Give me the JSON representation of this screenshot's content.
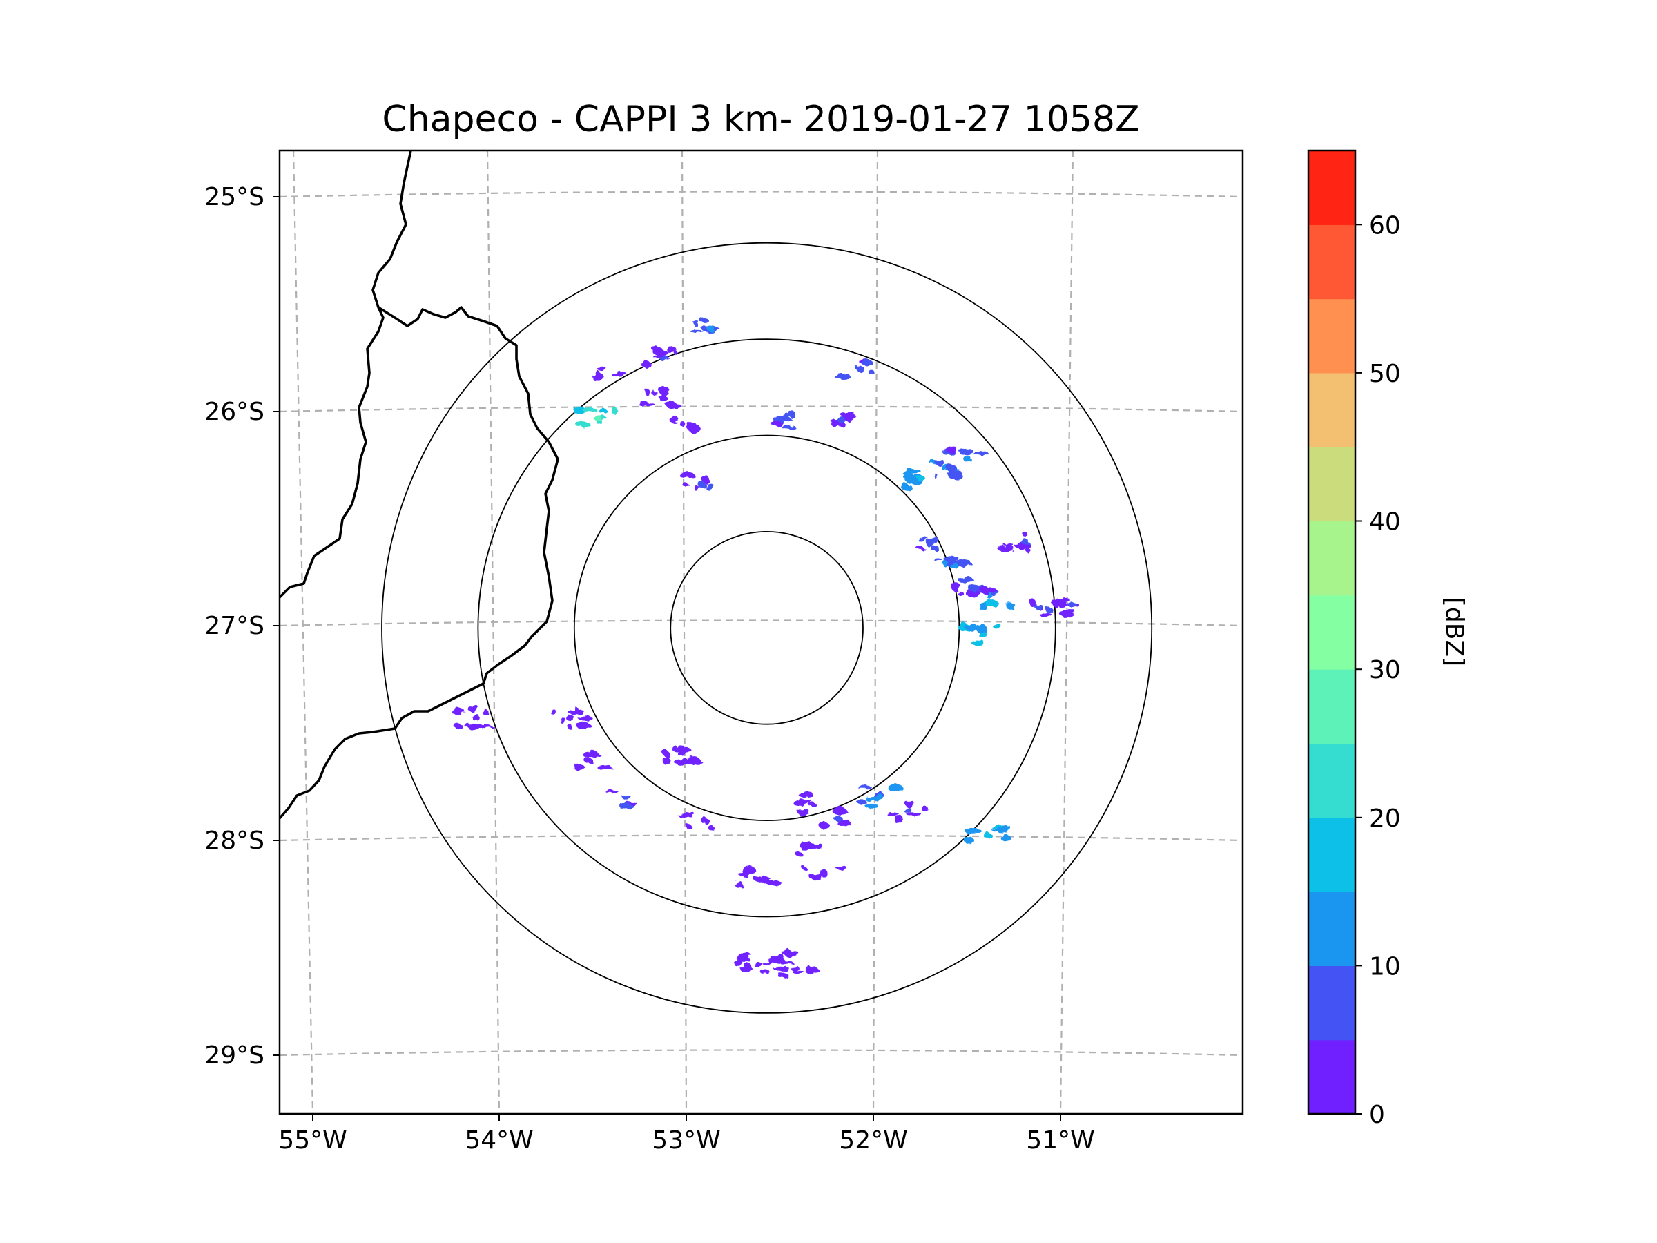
{
  "chart_data": {
    "type": "radar_map",
    "title": "Chapeco - CAPPI 3 km- 2019-01-27 1058Z",
    "radar_site": {
      "lon": -52.6,
      "lat": -27.03
    },
    "lon_range": [
      -55.2,
      -50.06
    ],
    "lat_range": [
      -29.3,
      -24.8
    ],
    "lon_ticks": [
      -55,
      -54,
      -53,
      -52,
      -51
    ],
    "lon_tick_labels": [
      "55°W",
      "54°W",
      "53°W",
      "52°W",
      "51°W"
    ],
    "lat_ticks": [
      -25,
      -26,
      -27,
      -28,
      -29
    ],
    "lat_tick_labels": [
      "25°S",
      "26°S",
      "27°S",
      "28°S",
      "29°S"
    ],
    "range_rings_km": [
      50,
      100,
      150,
      200
    ],
    "colorbar": {
      "label": "[dBZ]",
      "min": 0,
      "max": 65,
      "step": 5,
      "ticks": [
        0,
        10,
        20,
        30,
        40,
        50,
        60
      ],
      "tick_labels": [
        "0",
        "10",
        "20",
        "30",
        "40",
        "50",
        "60"
      ],
      "colors": [
        "#7020ff",
        "#4454f4",
        "#1a96f0",
        "#0dc0e8",
        "#35dcd0",
        "#5cf2b8",
        "#84ffa2",
        "#a8f48c",
        "#cbdc7c",
        "#f2c070",
        "#ff9050",
        "#ff5834",
        "#ff2414"
      ]
    },
    "echoes": [
      {
        "lon": -52.1,
        "lat": -25.82,
        "dbz": 8
      },
      {
        "lon": -51.78,
        "lat": -26.33,
        "dbz": 15
      },
      {
        "lon": -51.65,
        "lat": -26.28,
        "dbz": 12
      },
      {
        "lon": -51.53,
        "lat": -26.24,
        "dbz": 10
      },
      {
        "lon": -51.7,
        "lat": -26.66,
        "dbz": 8
      },
      {
        "lon": -51.6,
        "lat": -26.74,
        "dbz": 12
      },
      {
        "lon": -51.5,
        "lat": -26.85,
        "dbz": 8
      },
      {
        "lon": -51.38,
        "lat": -26.92,
        "dbz": 16
      },
      {
        "lon": -51.45,
        "lat": -27.06,
        "dbz": 18
      },
      {
        "lon": -51.15,
        "lat": -26.93,
        "dbz": 6
      },
      {
        "lon": -50.97,
        "lat": -26.92,
        "dbz": 5
      },
      {
        "lon": -51.22,
        "lat": -26.63,
        "dbz": 5
      },
      {
        "lon": -52.9,
        "lat": -25.63,
        "dbz": 10
      },
      {
        "lon": -53.15,
        "lat": -25.77,
        "dbz": 5
      },
      {
        "lon": -53.48,
        "lat": -25.82,
        "dbz": 4
      },
      {
        "lon": -52.95,
        "lat": -26.36,
        "dbz": 6
      },
      {
        "lon": -53.0,
        "lat": -26.08,
        "dbz": 4
      },
      {
        "lon": -52.55,
        "lat": -26.05,
        "dbz": 8
      },
      {
        "lon": -53.15,
        "lat": -25.96,
        "dbz": 3
      },
      {
        "lon": -52.2,
        "lat": -26.06,
        "dbz": 5
      },
      {
        "lon": -53.5,
        "lat": -26.05,
        "dbz": 25
      },
      {
        "lon": -52.93,
        "lat": -27.93,
        "dbz": 4
      },
      {
        "lon": -52.43,
        "lat": -27.85,
        "dbz": 4
      },
      {
        "lon": -52.22,
        "lat": -27.92,
        "dbz": 6
      },
      {
        "lon": -52.0,
        "lat": -27.82,
        "dbz": 12
      },
      {
        "lon": -51.85,
        "lat": -27.88,
        "dbz": 6
      },
      {
        "lon": -52.35,
        "lat": -28.05,
        "dbz": 4
      },
      {
        "lon": -53.35,
        "lat": -27.82,
        "dbz": 6
      },
      {
        "lon": -53.55,
        "lat": -27.65,
        "dbz": 4
      },
      {
        "lon": -53.65,
        "lat": -27.45,
        "dbz": 4
      },
      {
        "lon": -54.15,
        "lat": -27.45,
        "dbz": 4
      },
      {
        "lon": -53.05,
        "lat": -27.62,
        "dbz": 3
      },
      {
        "lon": -52.55,
        "lat": -28.58,
        "dbz": 3
      },
      {
        "lon": -52.45,
        "lat": -28.62,
        "dbz": 2
      },
      {
        "lon": -52.65,
        "lat": -28.6,
        "dbz": 3
      },
      {
        "lon": -51.42,
        "lat": -28.0,
        "dbz": 18
      },
      {
        "lon": -52.65,
        "lat": -28.2,
        "dbz": 3
      },
      {
        "lon": -52.3,
        "lat": -28.18,
        "dbz": 3
      }
    ]
  }
}
